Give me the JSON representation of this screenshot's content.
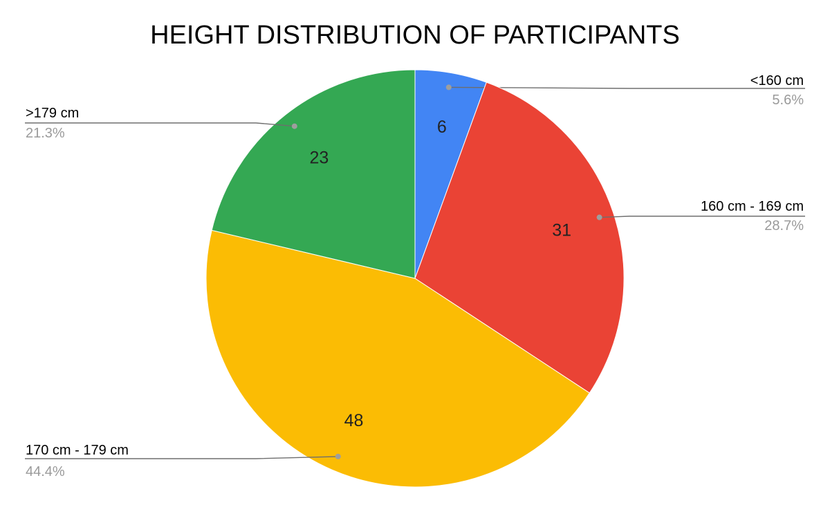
{
  "chart_data": {
    "type": "pie",
    "title": "HEIGHT DISTRIBUTION OF PARTICIPANTS",
    "start_angle_deg": 0,
    "direction": "clockwise",
    "slices": [
      {
        "label": "<160 cm",
        "value": 6,
        "percent_label": "5.6%",
        "value_label": "6",
        "color": "#4285F4"
      },
      {
        "label": "160 cm - 169 cm",
        "value": 31,
        "percent_label": "28.7%",
        "value_label": "31",
        "color": "#EA4335"
      },
      {
        "label": "170 cm - 179 cm",
        "value": 48,
        "percent_label": "44.4%",
        "value_label": "48",
        "color": "#FBBC04"
      },
      {
        "label": ">179 cm",
        "value": 23,
        "percent_label": "21.3%",
        "value_label": "23",
        "color": "#34A853"
      }
    ],
    "legend": "none",
    "label_style": "leader-lines"
  }
}
